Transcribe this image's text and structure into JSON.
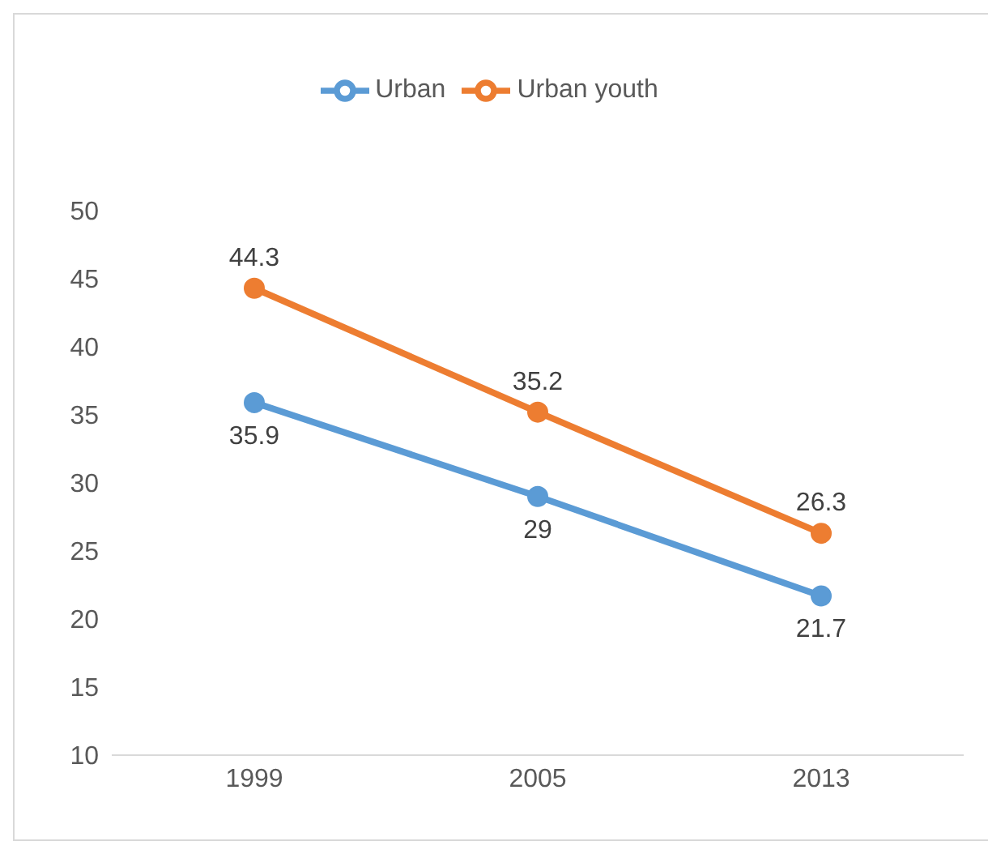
{
  "chart_data": {
    "type": "line",
    "categories": [
      "1999",
      "2005",
      "2013"
    ],
    "series": [
      {
        "name": "Urban",
        "color": "#5b9bd5",
        "values": [
          35.9,
          29,
          21.7
        ]
      },
      {
        "name": "Urban youth",
        "color": "#ed7d31",
        "values": [
          44.3,
          35.2,
          26.3
        ]
      }
    ],
    "ylim": [
      10,
      50
    ],
    "yticks": [
      10,
      15,
      20,
      25,
      30,
      35,
      40,
      45,
      50
    ],
    "grid": false,
    "legend": "top",
    "marker": "circle",
    "data_labels": true
  }
}
